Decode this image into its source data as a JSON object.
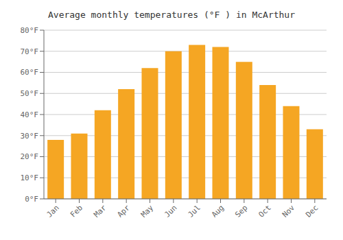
{
  "chart_data": {
    "type": "bar",
    "title": "Average monthly temperatures (°F ) in McArthur",
    "categories": [
      "Jan",
      "Feb",
      "Mar",
      "Apr",
      "May",
      "Jun",
      "Jul",
      "Aug",
      "Sep",
      "Oct",
      "Nov",
      "Dec"
    ],
    "values": [
      28,
      31,
      42,
      52,
      62,
      70,
      73,
      72,
      65,
      54,
      44,
      33
    ],
    "color": "#F5A623",
    "ylim": [
      0,
      80
    ],
    "yticks": [
      {
        "value": 0,
        "label": "0°F"
      },
      {
        "value": 10,
        "label": "10°F"
      },
      {
        "value": 20,
        "label": "20°F"
      },
      {
        "value": 30,
        "label": "30°F"
      },
      {
        "value": 40,
        "label": "40°F"
      },
      {
        "value": 50,
        "label": "50°F"
      },
      {
        "value": 60,
        "label": "60°F"
      },
      {
        "value": 70,
        "label": "70°F"
      },
      {
        "value": 80,
        "label": "80°F"
      }
    ],
    "grid": true
  }
}
